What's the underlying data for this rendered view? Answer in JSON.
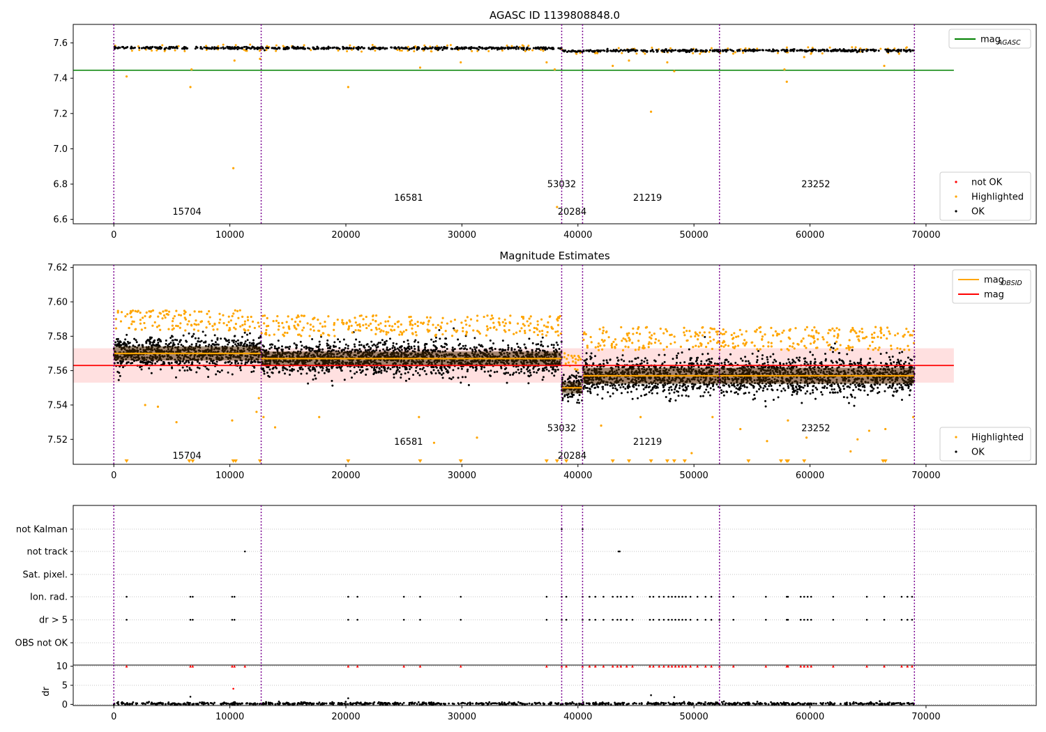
{
  "chart_data": [
    {
      "type": "scatter",
      "title": "AGASC ID 1139808848.0",
      "xlabel": "",
      "ylabel": "",
      "xlim": [
        -3500,
        79500
      ],
      "ylim": [
        6.575,
        7.705
      ],
      "x_ticks": [
        0,
        10000,
        20000,
        30000,
        40000,
        50000,
        60000,
        70000
      ],
      "y_ticks": [
        6.6,
        6.8,
        7.0,
        7.2,
        7.4,
        7.6
      ],
      "y_tick_decimals": 1,
      "grid": false,
      "legend_top": {
        "placement": "top-right",
        "entries": [
          {
            "label": "mag",
            "sub": "AGASC",
            "color": "#008000",
            "kind": "line"
          }
        ]
      },
      "legend_bottom": {
        "placement": "bottom-right",
        "entries": [
          {
            "label": "not OK",
            "color": "#ff0000",
            "kind": "dot"
          },
          {
            "label": "Highlighted",
            "color": "#ffa500",
            "kind": "dot"
          },
          {
            "label": "OK",
            "color": "#000000",
            "kind": "dot"
          }
        ]
      },
      "hlines": [
        {
          "name": "mag_AGASC",
          "y": 7.445,
          "x0": -3500,
          "x1": 72400,
          "color": "#008000"
        }
      ],
      "segments": [
        {
          "x0": 0,
          "x1": 12700,
          "mean": 7.572,
          "spread": 0.006
        },
        {
          "x0": 12700,
          "x1": 38600,
          "mean": 7.57,
          "spread": 0.006
        },
        {
          "x0": 38600,
          "x1": 40400,
          "mean": 7.553,
          "spread": 0.005
        },
        {
          "x0": 40400,
          "x1": 52200,
          "mean": 7.556,
          "spread": 0.006
        },
        {
          "x0": 52200,
          "x1": 69000,
          "mean": 7.557,
          "spread": 0.006
        }
      ],
      "highlight_outliers": [
        [
          1100,
          7.41
        ],
        [
          6600,
          7.35
        ],
        [
          6700,
          7.45
        ],
        [
          10300,
          6.89
        ],
        [
          10400,
          7.5
        ],
        [
          12600,
          7.51
        ],
        [
          20200,
          7.35
        ],
        [
          26400,
          7.46
        ],
        [
          29900,
          7.49
        ],
        [
          37300,
          7.49
        ],
        [
          38000,
          7.45
        ],
        [
          38200,
          6.67
        ],
        [
          43000,
          7.47
        ],
        [
          44400,
          7.5
        ],
        [
          46300,
          7.21
        ],
        [
          47700,
          7.49
        ],
        [
          48300,
          7.44
        ],
        [
          57800,
          7.45
        ],
        [
          58000,
          7.38
        ],
        [
          59500,
          7.52
        ],
        [
          66400,
          7.47
        ]
      ],
      "obsid_labels": [
        {
          "text": "15704",
          "x": 6300,
          "y": 6.627
        },
        {
          "text": "16581",
          "x": 25400,
          "y": 6.706
        },
        {
          "text": "53032",
          "x": 38600,
          "y": 6.783
        },
        {
          "text": "20284",
          "x": 39500,
          "y": 6.627
        },
        {
          "text": "21219",
          "x": 46000,
          "y": 6.706
        },
        {
          "text": "23252",
          "x": 60500,
          "y": 6.783
        }
      ],
      "vlines": [
        0,
        12700,
        38600,
        40400,
        52200,
        69000
      ]
    },
    {
      "type": "scatter",
      "title": "Magnitude Estimates",
      "xlabel": "",
      "ylabel": "",
      "xlim": [
        -3500,
        79500
      ],
      "ylim": [
        7.5055,
        7.6215
      ],
      "x_ticks": [
        0,
        10000,
        20000,
        30000,
        40000,
        50000,
        60000,
        70000
      ],
      "y_ticks": [
        7.52,
        7.54,
        7.56,
        7.58,
        7.6,
        7.62
      ],
      "y_tick_decimals": 2,
      "grid": false,
      "legend_top": {
        "placement": "top-right",
        "entries": [
          {
            "label": "mag",
            "sub": "OBSID",
            "color": "#ffa500",
            "kind": "line"
          },
          {
            "label": "mag",
            "sub": "",
            "color": "#ff0000",
            "kind": "line"
          }
        ]
      },
      "legend_bottom": {
        "placement": "bottom-right",
        "entries": [
          {
            "label": "Highlighted",
            "color": "#ffa500",
            "kind": "dot"
          },
          {
            "label": "OK",
            "color": "#000000",
            "kind": "dot"
          }
        ]
      },
      "mag_line": {
        "y": 7.563,
        "band": [
          7.553,
          7.573
        ],
        "x0": -3500,
        "x1": 72400,
        "color": "#ff0000"
      },
      "segments": [
        {
          "x0": 0,
          "x1": 12700,
          "mean": 7.57,
          "spread": 0.0075,
          "obsid_mag": 7.57
        },
        {
          "x0": 12700,
          "x1": 38600,
          "mean": 7.567,
          "spread": 0.0075,
          "obsid_mag": 7.567
        },
        {
          "x0": 38600,
          "x1": 40400,
          "mean": 7.55,
          "spread": 0.006,
          "obsid_mag": 7.55
        },
        {
          "x0": 40400,
          "x1": 52200,
          "mean": 7.557,
          "spread": 0.0085,
          "obsid_mag": 7.557
        },
        {
          "x0": 52200,
          "x1": 69000,
          "mean": 7.557,
          "spread": 0.0085,
          "obsid_mag": 7.557
        }
      ],
      "highlight_outliers": [
        [
          2700,
          7.54
        ],
        [
          3800,
          7.539
        ],
        [
          5400,
          7.53
        ],
        [
          10200,
          7.531
        ],
        [
          12300,
          7.536
        ],
        [
          12500,
          7.544
        ],
        [
          12900,
          7.533
        ],
        [
          13900,
          7.527
        ],
        [
          17700,
          7.533
        ],
        [
          26300,
          7.533
        ],
        [
          27600,
          7.518
        ],
        [
          31300,
          7.521
        ],
        [
          42000,
          7.528
        ],
        [
          45400,
          7.533
        ],
        [
          49800,
          7.512
        ],
        [
          51600,
          7.533
        ],
        [
          54000,
          7.526
        ],
        [
          56300,
          7.519
        ],
        [
          58100,
          7.531
        ],
        [
          59700,
          7.521
        ],
        [
          63500,
          7.513
        ],
        [
          64100,
          7.52
        ],
        [
          65100,
          7.525
        ],
        [
          66500,
          7.526
        ],
        [
          68900,
          7.533
        ]
      ],
      "below_range_markers": [
        1100,
        6500,
        6800,
        10300,
        10500,
        12600,
        20200,
        26400,
        29900,
        37300,
        38200,
        39000,
        43000,
        44400,
        46300,
        47700,
        48300,
        49200,
        54700,
        57500,
        58000,
        58100,
        59500,
        66300,
        66500
      ],
      "obsid_labels": [
        {
          "text": "15704",
          "x": 6300,
          "y": 7.5088
        },
        {
          "text": "16581",
          "x": 25400,
          "y": 7.5168
        },
        {
          "text": "53032",
          "x": 38600,
          "y": 7.5248
        },
        {
          "text": "20284",
          "x": 39500,
          "y": 7.5088
        },
        {
          "text": "21219",
          "x": 46000,
          "y": 7.5168
        },
        {
          "text": "23252",
          "x": 60500,
          "y": 7.5248
        }
      ],
      "vlines": [
        0,
        12700,
        38600,
        40400,
        52200,
        69000
      ]
    },
    {
      "type": "scatter",
      "title": "",
      "xlim": [
        -3500,
        79500
      ],
      "category_ticks": [
        "not Kalman",
        "not track",
        "Sat. pixel.",
        "Ion. rad.",
        "dr > 5",
        "OBS not OK"
      ],
      "flags": {
        "not Kalman": [
          38600,
          40400
        ],
        "not track": [
          11300,
          43500,
          43600
        ],
        "Sat. pixel.": [],
        "Ion. rad.": [
          1100,
          6600,
          6800,
          10200,
          10400,
          20200,
          21000,
          25000,
          26400,
          29900,
          37300,
          38600,
          39000,
          40400,
          41000,
          41500,
          42200,
          43000,
          43400,
          43700,
          44200,
          44700,
          46200,
          46500,
          47000,
          47400,
          47800,
          48100,
          48400,
          48700,
          49000,
          49300,
          49700,
          50300,
          51000,
          51500,
          52200,
          53400,
          56200,
          58000,
          58100,
          59200,
          59500,
          59800,
          60100,
          62000,
          64900,
          66400,
          67900,
          68400,
          68800
        ],
        "dr > 5": [
          1100,
          6600,
          6800,
          10200,
          10400,
          20200,
          21000,
          25000,
          26400,
          29900,
          37300,
          38600,
          39000,
          40400,
          41000,
          41500,
          42200,
          43000,
          43400,
          43700,
          44200,
          44700,
          46200,
          46500,
          47000,
          47400,
          47800,
          48100,
          48400,
          48700,
          49000,
          49300,
          49700,
          50300,
          51000,
          51500,
          52200,
          53400,
          56200,
          58000,
          58100,
          59200,
          59500,
          59800,
          60100,
          62000,
          64900,
          66400,
          67900,
          68400,
          68800
        ],
        "OBS not OK": []
      },
      "vlines": [
        0,
        12700,
        38600,
        40400,
        52200,
        69000
      ]
    },
    {
      "type": "scatter",
      "title": "",
      "xlabel": "",
      "ylabel": "dr",
      "xlim": [
        -3500,
        79500
      ],
      "ylim": [
        -0.3,
        10.3
      ],
      "x_ticks": [
        0,
        10000,
        20000,
        30000,
        40000,
        50000,
        60000,
        70000
      ],
      "y_ticks": [
        0,
        5,
        10
      ],
      "grid": true,
      "base_range": [
        0,
        69000
      ],
      "clipped_at_10": [
        1100,
        6600,
        6800,
        10200,
        10400,
        11300,
        20200,
        21000,
        25000,
        26400,
        29900,
        37300,
        38600,
        39000,
        40400,
        41000,
        41500,
        42200,
        43000,
        43400,
        43700,
        44200,
        44700,
        46200,
        46500,
        47000,
        47400,
        47800,
        48100,
        48400,
        48700,
        49000,
        49300,
        49700,
        50300,
        51000,
        51500,
        52200,
        53400,
        56200,
        58000,
        58100,
        59200,
        59500,
        59800,
        60100,
        62000,
        64900,
        66400,
        67900,
        68400,
        68800
      ],
      "not_ok_points": [
        [
          10300,
          4.1
        ]
      ],
      "ok_outliers": [
        [
          6600,
          2.0
        ],
        [
          20200,
          1.6
        ],
        [
          46300,
          2.4
        ],
        [
          48300,
          1.9
        ]
      ],
      "vlines": [
        0,
        12700,
        38600,
        40400,
        52200,
        69000
      ]
    }
  ]
}
